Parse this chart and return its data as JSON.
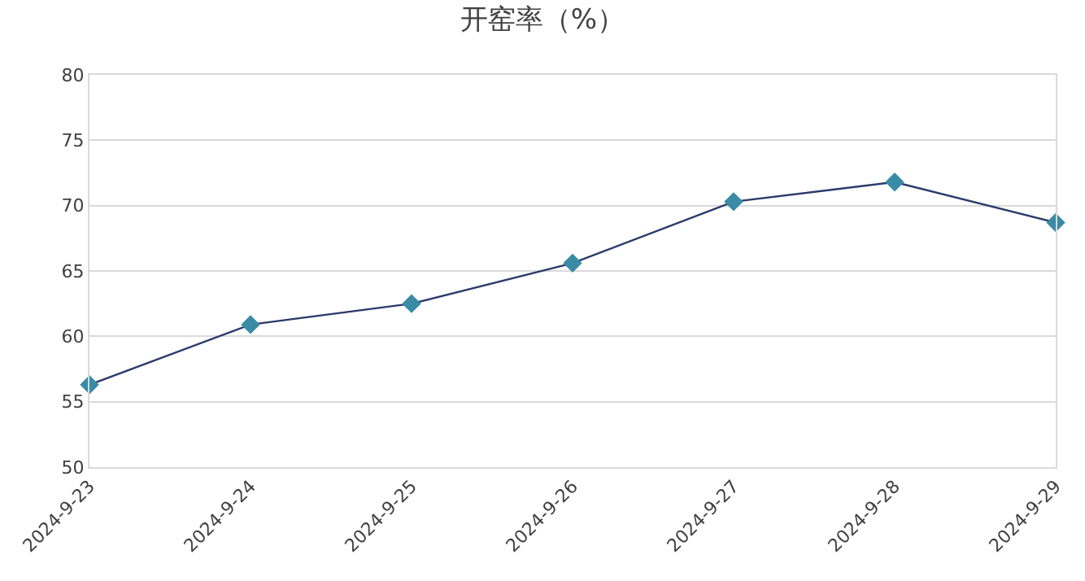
{
  "chart_data": {
    "type": "line",
    "title": "开窑率（%）",
    "categories": [
      "2024-9-23",
      "2024-9-24",
      "2024-9-25",
      "2024-9-26",
      "2024-9-27",
      "2024-9-28",
      "2024-9-29"
    ],
    "series": [
      {
        "color": "#2b3a6b",
        "colors": [
          "#3a8ba6",
          "#3a8ba6",
          "#3a8ba6",
          "#3a8ba6",
          "#3a8ba6",
          "#3a8ba6",
          "#3a8ba6"
        ],
        "values": [
          56.3,
          60.9,
          62.5,
          65.6,
          70.3,
          71.8,
          68.7
        ]
      }
    ],
    "ylim": [
      50,
      80
    ],
    "yticks": [
      50,
      55,
      60,
      65,
      70,
      75,
      80
    ],
    "grid": "y",
    "marker": "diamond",
    "line_style": "solid",
    "legend": false
  }
}
